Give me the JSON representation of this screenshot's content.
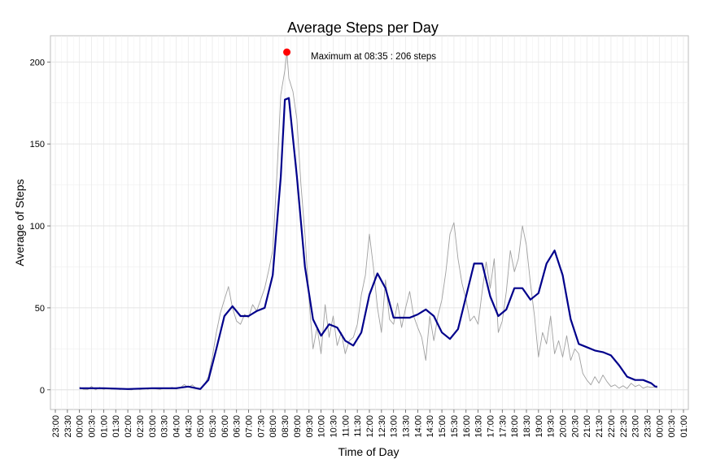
{
  "chart_data": {
    "type": "line",
    "title": "Average Steps per Day",
    "xlabel": "Time of Day",
    "ylabel": "Average of Steps",
    "ylim": [
      -12,
      216
    ],
    "yticks": [
      0,
      50,
      100,
      150,
      200
    ],
    "x_ticks": [
      "23:00",
      "23:30",
      "00:00",
      "00:30",
      "01:00",
      "01:30",
      "02:00",
      "02:30",
      "03:00",
      "03:30",
      "04:00",
      "04:30",
      "05:00",
      "05:30",
      "06:00",
      "06:30",
      "07:00",
      "07:30",
      "08:00",
      "08:30",
      "09:00",
      "09:30",
      "10:00",
      "10:30",
      "11:00",
      "11:30",
      "12:00",
      "12:30",
      "13:00",
      "13:30",
      "14:00",
      "14:30",
      "15:00",
      "15:30",
      "16:00",
      "16:30",
      "17:00",
      "17:30",
      "18:00",
      "18:30",
      "19:00",
      "19:30",
      "20:00",
      "20:30",
      "21:00",
      "21:30",
      "22:00",
      "22:30",
      "23:00",
      "23:30",
      "00:00",
      "00:30",
      "01:00"
    ],
    "grid": true,
    "series": [
      {
        "role": "raw",
        "color": "#a0a0a0",
        "points": [
          [
            "00:00",
            1.7
          ],
          [
            "00:10",
            0.3
          ],
          [
            "00:20",
            0.1
          ],
          [
            "00:30",
            2.1
          ],
          [
            "00:40",
            0.0
          ],
          [
            "00:50",
            1.5
          ],
          [
            "01:00",
            0.3
          ],
          [
            "01:10",
            1.1
          ],
          [
            "01:20",
            0.5
          ],
          [
            "01:30",
            1.0
          ],
          [
            "01:40",
            0.2
          ],
          [
            "01:50",
            0.8
          ],
          [
            "02:00",
            0.1
          ],
          [
            "02:10",
            0.0
          ],
          [
            "02:20",
            0.9
          ],
          [
            "02:30",
            0.2
          ],
          [
            "02:40",
            1.0
          ],
          [
            "02:50",
            0.4
          ],
          [
            "03:00",
            1.2
          ],
          [
            "03:10",
            0.6
          ],
          [
            "03:20",
            0.3
          ],
          [
            "03:30",
            1.1
          ],
          [
            "03:40",
            0.8
          ],
          [
            "03:50",
            1.5
          ],
          [
            "04:00",
            0.5
          ],
          [
            "04:10",
            1.3
          ],
          [
            "04:20",
            3.2
          ],
          [
            "04:30",
            1.5
          ],
          [
            "04:40",
            3.0
          ],
          [
            "04:50",
            0.8
          ],
          [
            "05:00",
            0.5
          ],
          [
            "05:10",
            3.0
          ],
          [
            "05:20",
            8.0
          ],
          [
            "05:30",
            20.0
          ],
          [
            "05:40",
            35.0
          ],
          [
            "05:50",
            47.0
          ],
          [
            "06:00",
            55.0
          ],
          [
            "06:10",
            63.0
          ],
          [
            "06:20",
            50.0
          ],
          [
            "06:30",
            42.0
          ],
          [
            "06:40",
            40.0
          ],
          [
            "06:50",
            46.0
          ],
          [
            "07:00",
            44.0
          ],
          [
            "07:10",
            52.0
          ],
          [
            "07:20",
            48.0
          ],
          [
            "07:30",
            55.0
          ],
          [
            "07:40",
            62.0
          ],
          [
            "07:50",
            73.0
          ],
          [
            "08:00",
            85.0
          ],
          [
            "08:10",
            130.0
          ],
          [
            "08:20",
            180.0
          ],
          [
            "08:30",
            195.0
          ],
          [
            "08:35",
            206.0
          ],
          [
            "08:40",
            190.0
          ],
          [
            "08:50",
            182.0
          ],
          [
            "09:00",
            165.0
          ],
          [
            "09:10",
            125.0
          ],
          [
            "09:20",
            95.0
          ],
          [
            "09:30",
            55.0
          ],
          [
            "09:40",
            25.0
          ],
          [
            "09:50",
            38.0
          ],
          [
            "10:00",
            22.0
          ],
          [
            "10:10",
            52.0
          ],
          [
            "10:20",
            32.0
          ],
          [
            "10:30",
            45.0
          ],
          [
            "10:40",
            27.0
          ],
          [
            "10:50",
            35.0
          ],
          [
            "11:00",
            22.0
          ],
          [
            "11:10",
            30.0
          ],
          [
            "11:20",
            32.0
          ],
          [
            "11:30",
            40.0
          ],
          [
            "11:40",
            58.0
          ],
          [
            "11:50",
            70.0
          ],
          [
            "12:00",
            95.0
          ],
          [
            "12:10",
            75.0
          ],
          [
            "12:20",
            50.0
          ],
          [
            "12:30",
            35.0
          ],
          [
            "12:40",
            67.0
          ],
          [
            "12:50",
            43.0
          ],
          [
            "13:00",
            40.0
          ],
          [
            "13:10",
            53.0
          ],
          [
            "13:20",
            38.0
          ],
          [
            "13:30",
            50.0
          ],
          [
            "13:40",
            60.0
          ],
          [
            "13:50",
            45.0
          ],
          [
            "14:00",
            38.0
          ],
          [
            "14:10",
            32.0
          ],
          [
            "14:20",
            18.0
          ],
          [
            "14:30",
            45.0
          ],
          [
            "14:40",
            30.0
          ],
          [
            "14:50",
            45.0
          ],
          [
            "15:00",
            55.0
          ],
          [
            "15:10",
            72.0
          ],
          [
            "15:20",
            95.0
          ],
          [
            "15:30",
            102.0
          ],
          [
            "15:40",
            80.0
          ],
          [
            "15:50",
            65.0
          ],
          [
            "16:00",
            55.0
          ],
          [
            "16:10",
            42.0
          ],
          [
            "16:20",
            45.0
          ],
          [
            "16:30",
            40.0
          ],
          [
            "16:40",
            60.0
          ],
          [
            "16:50",
            78.0
          ],
          [
            "17:00",
            62.0
          ],
          [
            "17:10",
            80.0
          ],
          [
            "17:20",
            35.0
          ],
          [
            "17:30",
            42.0
          ],
          [
            "17:40",
            60.0
          ],
          [
            "17:50",
            85.0
          ],
          [
            "18:00",
            72.0
          ],
          [
            "18:10",
            80.0
          ],
          [
            "18:20",
            100.0
          ],
          [
            "18:30",
            88.0
          ],
          [
            "18:40",
            65.0
          ],
          [
            "18:50",
            45.0
          ],
          [
            "19:00",
            20.0
          ],
          [
            "19:10",
            35.0
          ],
          [
            "19:20",
            28.0
          ],
          [
            "19:30",
            45.0
          ],
          [
            "19:40",
            22.0
          ],
          [
            "19:50",
            30.0
          ],
          [
            "20:00",
            20.0
          ],
          [
            "20:10",
            33.0
          ],
          [
            "20:20",
            18.0
          ],
          [
            "20:30",
            25.0
          ],
          [
            "20:40",
            22.0
          ],
          [
            "20:50",
            10.0
          ],
          [
            "21:00",
            6.0
          ],
          [
            "21:10",
            3.0
          ],
          [
            "21:20",
            8.0
          ],
          [
            "21:30",
            4.0
          ],
          [
            "21:40",
            9.0
          ],
          [
            "21:50",
            5.0
          ],
          [
            "22:00",
            2.0
          ],
          [
            "22:10",
            3.0
          ],
          [
            "22:20",
            1.0
          ],
          [
            "22:30",
            2.5
          ],
          [
            "22:40",
            0.8
          ],
          [
            "22:50",
            4.0
          ],
          [
            "23:00",
            2.0
          ],
          [
            "23:10",
            3.0
          ],
          [
            "23:20",
            1.0
          ],
          [
            "23:30",
            2.0
          ],
          [
            "23:40",
            1.5
          ],
          [
            "23:50",
            1.8
          ],
          [
            "23:55",
            1.0
          ]
        ]
      },
      {
        "role": "smoothed",
        "color": "#00008b",
        "points": [
          [
            "00:00",
            1
          ],
          [
            "01:00",
            1
          ],
          [
            "02:00",
            0.5
          ],
          [
            "03:00",
            1
          ],
          [
            "04:00",
            1
          ],
          [
            "04:30",
            2
          ],
          [
            "04:50",
            1
          ],
          [
            "05:00",
            0.5
          ],
          [
            "05:20",
            6
          ],
          [
            "05:40",
            25
          ],
          [
            "06:00",
            45
          ],
          [
            "06:20",
            51
          ],
          [
            "06:40",
            45
          ],
          [
            "07:00",
            45
          ],
          [
            "07:20",
            48
          ],
          [
            "07:40",
            50
          ],
          [
            "08:00",
            70
          ],
          [
            "08:20",
            130
          ],
          [
            "08:30",
            177
          ],
          [
            "08:40",
            178
          ],
          [
            "09:00",
            130
          ],
          [
            "09:20",
            75
          ],
          [
            "09:40",
            43
          ],
          [
            "10:00",
            33
          ],
          [
            "10:20",
            40
          ],
          [
            "10:40",
            38
          ],
          [
            "11:00",
            30
          ],
          [
            "11:20",
            27
          ],
          [
            "11:40",
            35
          ],
          [
            "12:00",
            58
          ],
          [
            "12:20",
            71
          ],
          [
            "12:40",
            62
          ],
          [
            "13:00",
            44
          ],
          [
            "13:20",
            44
          ],
          [
            "13:40",
            44
          ],
          [
            "14:00",
            46
          ],
          [
            "14:20",
            49
          ],
          [
            "14:40",
            45
          ],
          [
            "15:00",
            35
          ],
          [
            "15:20",
            31
          ],
          [
            "15:40",
            37
          ],
          [
            "16:00",
            57
          ],
          [
            "16:20",
            77
          ],
          [
            "16:40",
            77
          ],
          [
            "17:00",
            57
          ],
          [
            "17:20",
            45
          ],
          [
            "17:40",
            49
          ],
          [
            "18:00",
            62
          ],
          [
            "18:20",
            62
          ],
          [
            "18:40",
            55
          ],
          [
            "19:00",
            59
          ],
          [
            "19:20",
            77
          ],
          [
            "19:40",
            85
          ],
          [
            "20:00",
            70
          ],
          [
            "20:20",
            43
          ],
          [
            "20:40",
            28
          ],
          [
            "21:00",
            26
          ],
          [
            "21:20",
            24
          ],
          [
            "21:40",
            23
          ],
          [
            "22:00",
            21
          ],
          [
            "22:20",
            15
          ],
          [
            "22:40",
            8
          ],
          [
            "23:00",
            6
          ],
          [
            "23:20",
            6
          ],
          [
            "23:40",
            4
          ],
          [
            "23:50",
            2
          ],
          [
            "23:55",
            2
          ]
        ]
      }
    ],
    "max_point": {
      "time": "08:35",
      "value": 206,
      "color": "#ff0000"
    },
    "annotation": "Maximum at 08:35 : 206 steps"
  }
}
